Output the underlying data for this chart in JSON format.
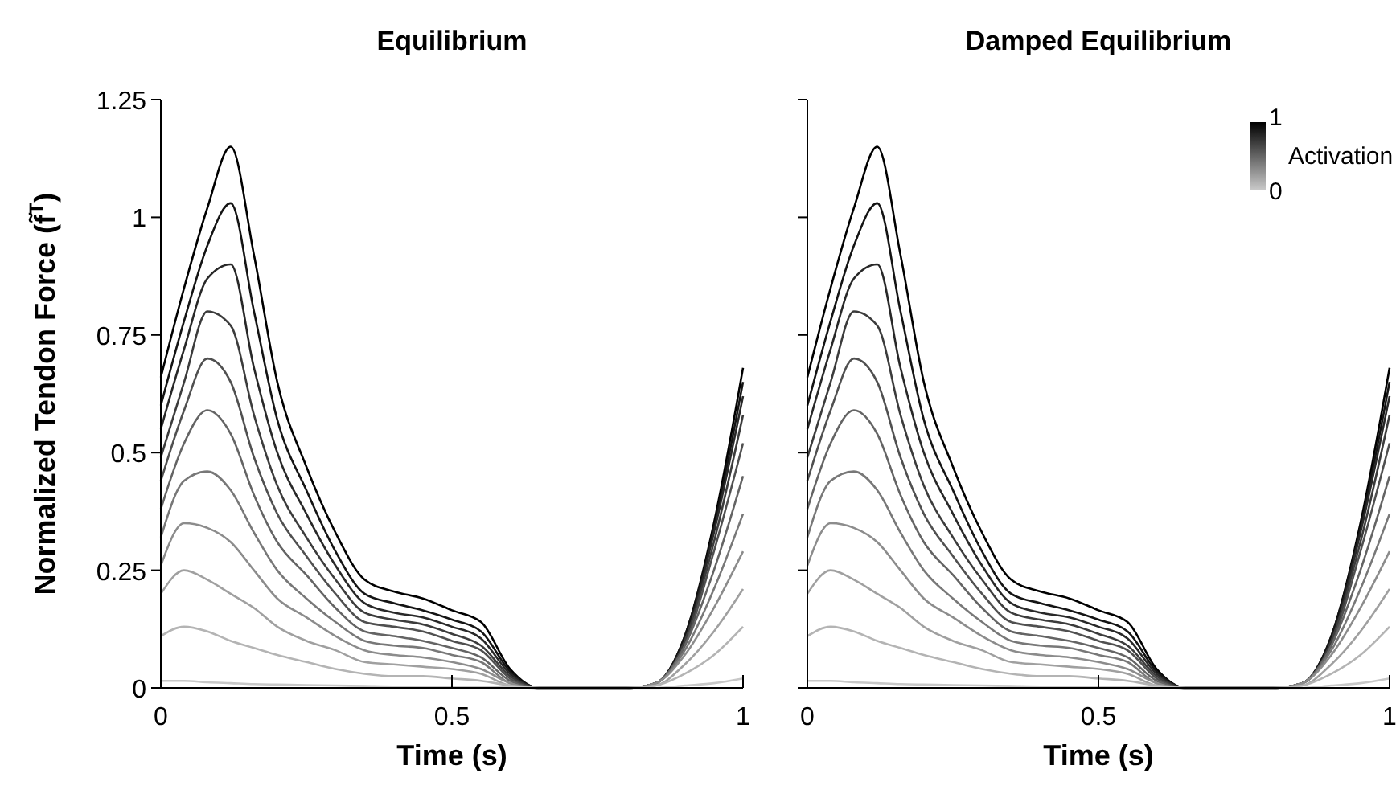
{
  "chart_data": [
    {
      "type": "line",
      "title": "Equilibrium",
      "xlabel": "Time (s)",
      "ylabel": "Normalized Tendon Force (f̃$^{T}$)",
      "x": [
        0,
        0.04,
        0.08,
        0.12,
        0.16,
        0.2,
        0.25,
        0.3,
        0.35,
        0.4,
        0.45,
        0.5,
        0.55,
        0.6,
        0.65,
        0.7,
        0.8,
        0.85,
        0.9,
        0.95,
        1
      ],
      "xlim": [
        0,
        1
      ],
      "ylim": [
        0,
        1.25
      ],
      "xticks": [
        0,
        0.5,
        1
      ],
      "yticks": [
        0,
        0.25,
        0.5,
        0.75,
        1,
        1.25
      ],
      "series": [
        {
          "color": "#000000",
          "values": [
            0.66,
            0.85,
            1.02,
            1.15,
            0.92,
            0.65,
            0.47,
            0.33,
            0.23,
            0.205,
            0.19,
            0.165,
            0.14,
            0.04,
            0,
            0,
            0,
            0.01,
            0.11,
            0.35,
            0.68
          ]
        },
        {
          "color": "#141414",
          "values": [
            0.6,
            0.78,
            0.94,
            1.03,
            0.8,
            0.57,
            0.42,
            0.29,
            0.2,
            0.18,
            0.165,
            0.145,
            0.12,
            0.035,
            0,
            0,
            0,
            0.01,
            0.11,
            0.34,
            0.65
          ]
        },
        {
          "color": "#282828",
          "values": [
            0.55,
            0.72,
            0.87,
            0.9,
            0.68,
            0.5,
            0.37,
            0.26,
            0.18,
            0.16,
            0.15,
            0.13,
            0.105,
            0.03,
            0,
            0,
            0,
            0.01,
            0.1,
            0.33,
            0.62
          ]
        },
        {
          "color": "#3c3c3c",
          "values": [
            0.49,
            0.65,
            0.8,
            0.77,
            0.58,
            0.43,
            0.32,
            0.23,
            0.16,
            0.145,
            0.135,
            0.115,
            0.09,
            0.025,
            0,
            0,
            0,
            0.01,
            0.1,
            0.31,
            0.58
          ]
        },
        {
          "color": "#505050",
          "values": [
            0.44,
            0.59,
            0.7,
            0.65,
            0.49,
            0.37,
            0.28,
            0.2,
            0.14,
            0.13,
            0.12,
            0.1,
            0.08,
            0.02,
            0,
            0,
            0,
            0.01,
            0.09,
            0.29,
            0.52
          ]
        },
        {
          "color": "#646464",
          "values": [
            0.38,
            0.52,
            0.59,
            0.54,
            0.41,
            0.31,
            0.24,
            0.17,
            0.12,
            0.11,
            0.1,
            0.085,
            0.065,
            0.015,
            0,
            0,
            0,
            0.01,
            0.09,
            0.25,
            0.45
          ]
        },
        {
          "color": "#787878",
          "values": [
            0.32,
            0.44,
            0.46,
            0.42,
            0.33,
            0.25,
            0.19,
            0.14,
            0.1,
            0.09,
            0.085,
            0.07,
            0.055,
            0.01,
            0,
            0,
            0,
            0.01,
            0.08,
            0.21,
            0.37
          ]
        },
        {
          "color": "#8c8c8c",
          "values": [
            0.26,
            0.35,
            0.34,
            0.31,
            0.25,
            0.19,
            0.15,
            0.11,
            0.08,
            0.07,
            0.065,
            0.055,
            0.04,
            0.01,
            0,
            0,
            0,
            0.01,
            0.07,
            0.17,
            0.29
          ]
        },
        {
          "color": "#a0a0a0",
          "values": [
            0.2,
            0.25,
            0.23,
            0.2,
            0.17,
            0.13,
            0.1,
            0.08,
            0.055,
            0.05,
            0.045,
            0.04,
            0.03,
            0.005,
            0,
            0,
            0,
            0.005,
            0.05,
            0.12,
            0.21
          ]
        },
        {
          "color": "#b4b4b4",
          "values": [
            0.11,
            0.13,
            0.12,
            0.1,
            0.085,
            0.07,
            0.055,
            0.04,
            0.03,
            0.025,
            0.025,
            0.02,
            0.015,
            0.005,
            0,
            0,
            0,
            0.005,
            0.03,
            0.07,
            0.13
          ]
        },
        {
          "color": "#c8c8c8",
          "values": [
            0.015,
            0.015,
            0.012,
            0.01,
            0.008,
            0.007,
            0.006,
            0.005,
            0.004,
            0.003,
            0.003,
            0.003,
            0.003,
            0.002,
            0,
            0,
            0,
            0,
            0.005,
            0.01,
            0.02
          ]
        }
      ]
    },
    {
      "type": "line",
      "title": "Damped Equilibrium",
      "xlabel": "Time (s)",
      "clabel": "Activation",
      "annotations": [
        "1",
        "0"
      ],
      "tick_labels": "x",
      "x": [
        0,
        0.04,
        0.08,
        0.12,
        0.16,
        0.2,
        0.25,
        0.3,
        0.35,
        0.4,
        0.45,
        0.5,
        0.55,
        0.6,
        0.65,
        0.7,
        0.8,
        0.85,
        0.9,
        0.95,
        1
      ],
      "xlim": [
        0,
        1
      ],
      "ylim": [
        0,
        1.25
      ],
      "xticks": [
        0,
        0.5,
        1
      ],
      "yticks": [
        0,
        0.25,
        0.5,
        0.75,
        1,
        1.25
      ],
      "series": [
        {
          "color": "#000000",
          "values": [
            0.66,
            0.85,
            1.02,
            1.15,
            0.92,
            0.65,
            0.47,
            0.33,
            0.23,
            0.205,
            0.19,
            0.165,
            0.14,
            0.04,
            0,
            0,
            0,
            0.01,
            0.11,
            0.35,
            0.68
          ]
        },
        {
          "color": "#141414",
          "values": [
            0.6,
            0.78,
            0.94,
            1.03,
            0.8,
            0.57,
            0.42,
            0.29,
            0.2,
            0.18,
            0.165,
            0.145,
            0.12,
            0.035,
            0,
            0,
            0,
            0.01,
            0.11,
            0.34,
            0.65
          ]
        },
        {
          "color": "#282828",
          "values": [
            0.55,
            0.72,
            0.87,
            0.9,
            0.68,
            0.5,
            0.37,
            0.26,
            0.18,
            0.16,
            0.15,
            0.13,
            0.105,
            0.03,
            0,
            0,
            0,
            0.01,
            0.1,
            0.33,
            0.62
          ]
        },
        {
          "color": "#3c3c3c",
          "values": [
            0.49,
            0.65,
            0.8,
            0.77,
            0.58,
            0.43,
            0.32,
            0.23,
            0.16,
            0.145,
            0.135,
            0.115,
            0.09,
            0.025,
            0,
            0,
            0,
            0.01,
            0.1,
            0.31,
            0.58
          ]
        },
        {
          "color": "#505050",
          "values": [
            0.44,
            0.59,
            0.7,
            0.65,
            0.49,
            0.37,
            0.28,
            0.2,
            0.14,
            0.13,
            0.12,
            0.1,
            0.08,
            0.02,
            0,
            0,
            0,
            0.01,
            0.09,
            0.29,
            0.52
          ]
        },
        {
          "color": "#646464",
          "values": [
            0.38,
            0.52,
            0.59,
            0.54,
            0.41,
            0.31,
            0.24,
            0.17,
            0.12,
            0.11,
            0.1,
            0.085,
            0.065,
            0.015,
            0,
            0,
            0,
            0.01,
            0.09,
            0.25,
            0.45
          ]
        },
        {
          "color": "#787878",
          "values": [
            0.32,
            0.44,
            0.46,
            0.42,
            0.33,
            0.25,
            0.19,
            0.14,
            0.1,
            0.09,
            0.085,
            0.07,
            0.055,
            0.01,
            0,
            0,
            0,
            0.01,
            0.08,
            0.21,
            0.37
          ]
        },
        {
          "color": "#8c8c8c",
          "values": [
            0.26,
            0.35,
            0.34,
            0.31,
            0.25,
            0.19,
            0.15,
            0.11,
            0.08,
            0.07,
            0.065,
            0.055,
            0.04,
            0.01,
            0,
            0,
            0,
            0.01,
            0.07,
            0.17,
            0.29
          ]
        },
        {
          "color": "#a0a0a0",
          "values": [
            0.2,
            0.25,
            0.23,
            0.2,
            0.17,
            0.13,
            0.1,
            0.08,
            0.055,
            0.05,
            0.045,
            0.04,
            0.03,
            0.005,
            0,
            0,
            0,
            0.005,
            0.05,
            0.12,
            0.21
          ]
        },
        {
          "color": "#b4b4b4",
          "values": [
            0.11,
            0.13,
            0.12,
            0.1,
            0.085,
            0.07,
            0.055,
            0.04,
            0.03,
            0.025,
            0.025,
            0.02,
            0.015,
            0.005,
            0,
            0,
            0,
            0.005,
            0.03,
            0.07,
            0.13
          ]
        },
        {
          "color": "#c8c8c8",
          "values": [
            0.015,
            0.015,
            0.012,
            0.01,
            0.008,
            0.007,
            0.006,
            0.005,
            0.004,
            0.003,
            0.003,
            0.003,
            0.003,
            0.002,
            0,
            0,
            0,
            0,
            0.005,
            0.01,
            0.02
          ]
        }
      ]
    }
  ]
}
